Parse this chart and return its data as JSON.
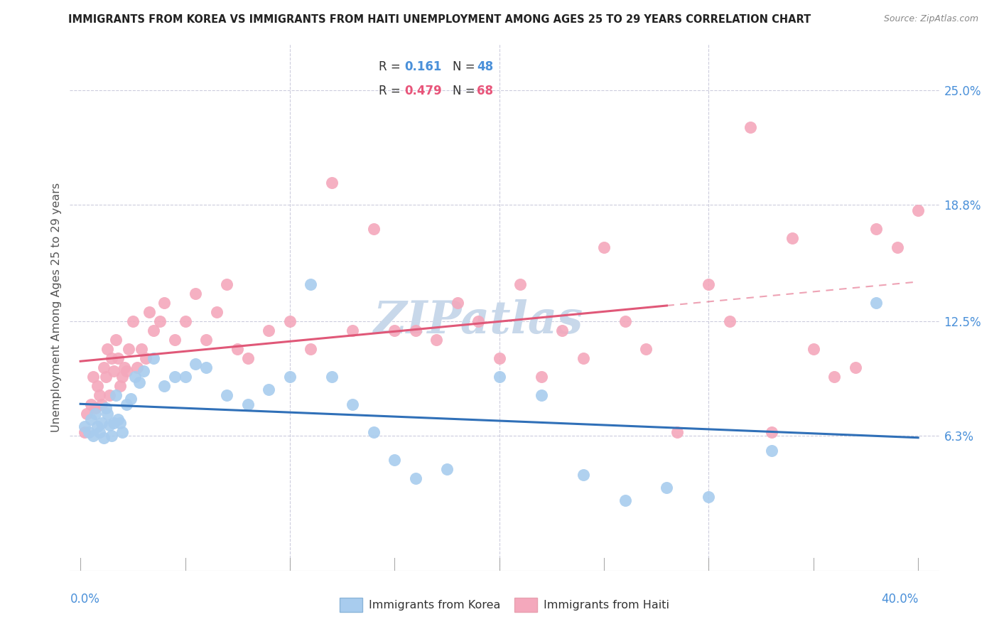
{
  "title": "IMMIGRANTS FROM KOREA VS IMMIGRANTS FROM HAITI UNEMPLOYMENT AMONG AGES 25 TO 29 YEARS CORRELATION CHART",
  "source": "Source: ZipAtlas.com",
  "ylabel": "Unemployment Among Ages 25 to 29 years",
  "ytick_values": [
    6.3,
    12.5,
    18.8,
    25.0
  ],
  "ytick_labels": [
    "6.3%",
    "12.5%",
    "18.8%",
    "25.0%"
  ],
  "xlim": [
    0.0,
    40.0
  ],
  "ylim": [
    0.0,
    27.0
  ],
  "korea_R": 0.161,
  "korea_N": 48,
  "haiti_R": 0.479,
  "haiti_N": 68,
  "korea_color": "#a8ccee",
  "haiti_color": "#f4a8bc",
  "korea_line_color": "#3070b8",
  "haiti_line_color": "#e05878",
  "korea_line_dash_color": "#d08898",
  "background_color": "#ffffff",
  "watermark": "ZIPatlas",
  "watermark_color": "#c8d8ea",
  "legend_label_korea": "Immigrants from Korea",
  "legend_label_haiti": "Immigrants from Haiti",
  "korea_x": [
    0.2,
    0.4,
    0.5,
    0.6,
    0.7,
    0.8,
    0.9,
    1.0,
    1.1,
    1.2,
    1.3,
    1.4,
    1.5,
    1.6,
    1.7,
    1.8,
    1.9,
    2.0,
    2.2,
    2.4,
    2.6,
    2.8,
    3.0,
    3.5,
    4.0,
    4.5,
    5.0,
    5.5,
    6.0,
    7.0,
    8.0,
    9.0,
    10.0,
    11.0,
    12.0,
    13.0,
    14.0,
    15.0,
    16.0,
    17.5,
    20.0,
    22.0,
    24.0,
    26.0,
    28.0,
    30.0,
    33.0,
    38.0
  ],
  "korea_y": [
    6.8,
    6.5,
    7.2,
    6.3,
    7.5,
    6.8,
    6.5,
    7.0,
    6.2,
    7.8,
    7.5,
    6.9,
    6.3,
    7.0,
    8.5,
    7.2,
    7.0,
    6.5,
    8.0,
    8.3,
    9.5,
    9.2,
    9.8,
    10.5,
    9.0,
    9.5,
    9.5,
    10.2,
    10.0,
    8.5,
    8.0,
    8.8,
    9.5,
    14.5,
    9.5,
    8.0,
    6.5,
    5.0,
    4.0,
    4.5,
    9.5,
    8.5,
    4.2,
    2.8,
    3.5,
    3.0,
    5.5,
    13.5
  ],
  "haiti_x": [
    0.2,
    0.3,
    0.5,
    0.6,
    0.7,
    0.8,
    0.9,
    1.0,
    1.1,
    1.2,
    1.3,
    1.4,
    1.5,
    1.6,
    1.7,
    1.8,
    1.9,
    2.0,
    2.1,
    2.2,
    2.3,
    2.5,
    2.7,
    2.9,
    3.1,
    3.3,
    3.5,
    3.8,
    4.0,
    4.5,
    5.0,
    5.5,
    6.0,
    6.5,
    7.0,
    7.5,
    8.0,
    9.0,
    10.0,
    11.0,
    12.0,
    13.0,
    14.0,
    15.0,
    16.0,
    17.0,
    18.0,
    19.0,
    20.0,
    21.0,
    22.0,
    23.0,
    24.0,
    25.0,
    26.0,
    27.0,
    28.5,
    30.0,
    31.0,
    32.0,
    33.0,
    34.0,
    35.0,
    36.0,
    37.0,
    38.0,
    39.0,
    40.0
  ],
  "haiti_y": [
    6.5,
    7.5,
    8.0,
    9.5,
    7.8,
    9.0,
    8.5,
    8.0,
    10.0,
    9.5,
    11.0,
    8.5,
    10.5,
    9.8,
    11.5,
    10.5,
    9.0,
    9.5,
    10.0,
    9.8,
    11.0,
    12.5,
    10.0,
    11.0,
    10.5,
    13.0,
    12.0,
    12.5,
    13.5,
    11.5,
    12.5,
    14.0,
    11.5,
    13.0,
    14.5,
    11.0,
    10.5,
    12.0,
    12.5,
    11.0,
    20.0,
    12.0,
    17.5,
    12.0,
    12.0,
    11.5,
    13.5,
    12.5,
    10.5,
    14.5,
    9.5,
    12.0,
    10.5,
    16.5,
    12.5,
    11.0,
    6.5,
    14.5,
    12.5,
    23.0,
    6.5,
    17.0,
    11.0,
    9.5,
    10.0,
    17.5,
    16.5,
    18.5
  ]
}
